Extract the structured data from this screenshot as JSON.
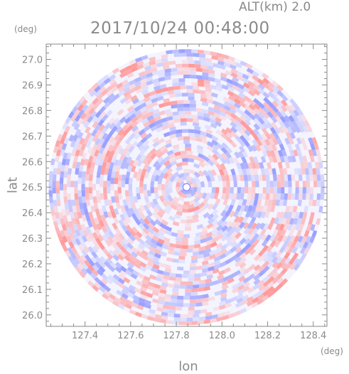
{
  "chart_data": {
    "type": "heatmap",
    "altitude_label": "ALT(km) 2.0",
    "timestamp": "2017/10/24 00:48:00",
    "xlabel": "lon",
    "ylabel": "lat",
    "x_unit": "(deg)",
    "y_unit": "(deg)",
    "xlim": [
      127.23,
      128.46
    ],
    "ylim": [
      25.955,
      27.06
    ],
    "x_ticks": [
      127.4,
      127.6,
      127.8,
      128.0,
      128.2,
      128.4
    ],
    "x_tick_labels": [
      "127.4",
      "127.6",
      "127.8",
      "128.0",
      "128.2",
      "128.4"
    ],
    "y_ticks": [
      26.0,
      26.1,
      26.2,
      26.3,
      26.4,
      26.5,
      26.6,
      26.7,
      26.8,
      26.9,
      27.0
    ],
    "y_tick_labels": [
      "26.0",
      "26.1",
      "26.2",
      "26.3",
      "26.4",
      "26.5",
      "26.6",
      "26.7",
      "26.8",
      "26.9",
      "27.0"
    ],
    "radar_center": [
      127.845,
      26.5
    ],
    "radar_radius_deg_lat": 0.54,
    "colors": {
      "positive": "#ff9a9a",
      "negative": "#9aa0ff",
      "neutral": "#f4f4ff",
      "axis": "#8a8a8a"
    }
  }
}
